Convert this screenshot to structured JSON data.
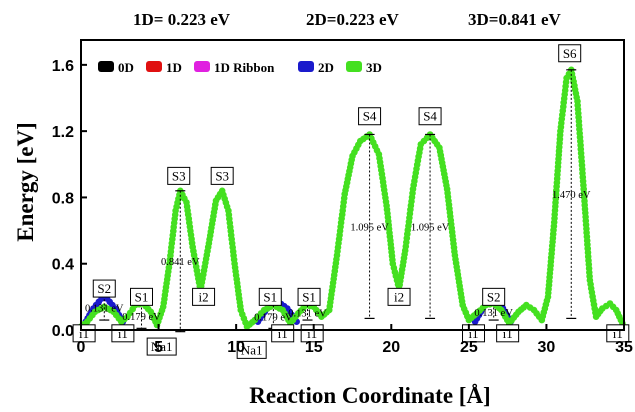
{
  "chart_data": {
    "type": "line",
    "header_labels": [
      "1D= 0.223 eV",
      "2D=0.223 eV",
      "3D=0.841 eV"
    ],
    "xlabel": "Reaction Coordinate [Å]",
    "ylabel": "Energy [eV]",
    "xlim": [
      0,
      35
    ],
    "ylim": [
      0,
      1.75
    ],
    "x_ticks": [
      0,
      5,
      10,
      15,
      20,
      25,
      30,
      35
    ],
    "y_ticks": [
      0.0,
      0.4,
      0.8,
      1.2,
      1.6
    ],
    "y_tick_labels": [
      "0.0",
      "0.4",
      "0.8",
      "1.2",
      "1.6"
    ],
    "legend": {
      "placement": "top-left",
      "entries": [
        {
          "label": "0D",
          "color": "#000000"
        },
        {
          "label": "1D",
          "color": "#e01010"
        },
        {
          "label": "1D Ribbon",
          "color": "#e020e0"
        },
        {
          "label": "2D",
          "color": "#1a1acc"
        },
        {
          "label": "3D",
          "color": "#44e020"
        }
      ]
    },
    "series": [
      {
        "name": "2D",
        "color": "#1a1acc",
        "segments": [
          [
            [
              0.3,
              0.05
            ],
            [
              0.8,
              0.13
            ],
            [
              1.5,
              0.21
            ],
            [
              2.2,
              0.13
            ],
            [
              2.7,
              0.05
            ]
          ],
          [
            [
              11.4,
              0.05
            ],
            [
              12.0,
              0.13
            ],
            [
              12.7,
              0.17
            ],
            [
              13.3,
              0.13
            ],
            [
              13.9,
              0.05
            ]
          ],
          [
            [
              25.4,
              0.05
            ],
            [
              25.9,
              0.13
            ],
            [
              26.6,
              0.21
            ],
            [
              27.2,
              0.13
            ],
            [
              27.7,
              0.05
            ]
          ]
        ]
      },
      {
        "name": "3D",
        "color": "#44e020",
        "points": [
          [
            0,
            0.02
          ],
          [
            0.4,
            0.05
          ],
          [
            0.9,
            0.11
          ],
          [
            1.5,
            0.14
          ],
          [
            2.1,
            0.11
          ],
          [
            2.6,
            0.05
          ],
          [
            3.0,
            0.08
          ],
          [
            3.5,
            0.15
          ],
          [
            4.0,
            0.16
          ],
          [
            4.5,
            0.11
          ],
          [
            4.9,
            0.03
          ],
          [
            5.3,
            0.14
          ],
          [
            5.7,
            0.4
          ],
          [
            6.1,
            0.72
          ],
          [
            6.4,
            0.84
          ],
          [
            6.8,
            0.77
          ],
          [
            7.2,
            0.5
          ],
          [
            7.7,
            0.24
          ],
          [
            8.2,
            0.5
          ],
          [
            8.7,
            0.78
          ],
          [
            9.1,
            0.84
          ],
          [
            9.5,
            0.72
          ],
          [
            9.9,
            0.4
          ],
          [
            10.3,
            0.12
          ],
          [
            10.7,
            0.02
          ],
          [
            11.2,
            0.06
          ],
          [
            11.8,
            0.12
          ],
          [
            12.4,
            0.15
          ],
          [
            13.0,
            0.12
          ],
          [
            13.5,
            0.04
          ],
          [
            14.0,
            0.1
          ],
          [
            14.5,
            0.15
          ],
          [
            15.0,
            0.14
          ],
          [
            15.5,
            0.08
          ],
          [
            16.0,
            0.12
          ],
          [
            16.5,
            0.45
          ],
          [
            17.0,
            0.82
          ],
          [
            17.5,
            1.05
          ],
          [
            18.0,
            1.14
          ],
          [
            18.6,
            1.18
          ],
          [
            19.2,
            1.06
          ],
          [
            19.7,
            0.75
          ],
          [
            20.1,
            0.4
          ],
          [
            20.5,
            0.25
          ],
          [
            20.9,
            0.48
          ],
          [
            21.4,
            0.85
          ],
          [
            21.9,
            1.12
          ],
          [
            22.5,
            1.18
          ],
          [
            23.1,
            1.1
          ],
          [
            23.6,
            0.85
          ],
          [
            24.1,
            0.45
          ],
          [
            24.6,
            0.15
          ],
          [
            25.0,
            0.06
          ],
          [
            25.5,
            0.1
          ],
          [
            26.1,
            0.15
          ],
          [
            26.6,
            0.16
          ],
          [
            27.1,
            0.12
          ],
          [
            27.6,
            0.04
          ],
          [
            28.2,
            0.11
          ],
          [
            28.7,
            0.15
          ],
          [
            29.2,
            0.12
          ],
          [
            29.7,
            0.06
          ],
          [
            30.1,
            0.2
          ],
          [
            30.5,
            0.65
          ],
          [
            30.9,
            1.2
          ],
          [
            31.3,
            1.52
          ],
          [
            31.6,
            1.57
          ],
          [
            32.0,
            1.38
          ],
          [
            32.4,
            0.85
          ],
          [
            32.8,
            0.3
          ],
          [
            33.2,
            0.08
          ],
          [
            33.6,
            0.13
          ],
          [
            34.1,
            0.16
          ],
          [
            34.5,
            0.12
          ],
          [
            34.9,
            0.04
          ]
        ]
      }
    ],
    "state_labels": [
      {
        "text": "S2",
        "x": 1.5,
        "y": 0.25
      },
      {
        "text": "S1",
        "x": 3.9,
        "y": 0.2
      },
      {
        "text": "S3",
        "x": 6.3,
        "y": 0.93
      },
      {
        "text": "S3",
        "x": 9.1,
        "y": 0.93
      },
      {
        "text": "S1",
        "x": 12.2,
        "y": 0.2
      },
      {
        "text": "S1",
        "x": 14.7,
        "y": 0.2
      },
      {
        "text": "S4",
        "x": 18.6,
        "y": 1.29
      },
      {
        "text": "S4",
        "x": 22.5,
        "y": 1.29
      },
      {
        "text": "S2",
        "x": 26.6,
        "y": 0.2
      },
      {
        "text": "S6",
        "x": 31.5,
        "y": 1.67
      },
      {
        "text": "i1",
        "x": 0.2,
        "y": -0.02
      },
      {
        "text": "i1",
        "x": 2.7,
        "y": -0.02
      },
      {
        "text": "i2",
        "x": 7.9,
        "y": 0.2
      },
      {
        "text": "i1",
        "x": 14.9,
        "y": -0.02
      },
      {
        "text": "i1",
        "x": 13.0,
        "y": -0.02
      },
      {
        "text": "i2",
        "x": 20.5,
        "y": 0.2
      },
      {
        "text": "i1",
        "x": 25.3,
        "y": -0.02
      },
      {
        "text": "i1",
        "x": 27.5,
        "y": -0.02
      },
      {
        "text": "i1",
        "x": 34.6,
        "y": -0.02
      },
      {
        "text": "Na1",
        "x": 5.2,
        "y": -0.1
      },
      {
        "text": "Na1",
        "x": 11.0,
        "y": -0.12
      }
    ],
    "barriers": [
      {
        "label": "0.131 eV",
        "x": 1.5,
        "y_low": 0.06,
        "y_high": 0.21
      },
      {
        "label": "0.179 eV",
        "x": 3.9,
        "y_low": 0.01,
        "y_high": 0.16
      },
      {
        "label": "0.841 eV",
        "x": 6.4,
        "y_low": -0.01,
        "y_high": 0.84
      },
      {
        "label": "0.179 eV",
        "x": 12.4,
        "y_low": 0.01,
        "y_high": 0.15
      },
      {
        "label": "0.131 eV",
        "x": 14.6,
        "y_low": 0.06,
        "y_high": 0.15
      },
      {
        "label": "1.095 eV",
        "x": 18.6,
        "y_low": 0.07,
        "y_high": 1.18
      },
      {
        "label": "1.095 eV",
        "x": 22.5,
        "y_low": 0.07,
        "y_high": 1.18
      },
      {
        "label": "0.131 eV",
        "x": 26.6,
        "y_low": 0.06,
        "y_high": 0.16
      },
      {
        "label": "1.470 eV",
        "x": 31.6,
        "y_low": 0.07,
        "y_high": 1.57
      }
    ]
  }
}
